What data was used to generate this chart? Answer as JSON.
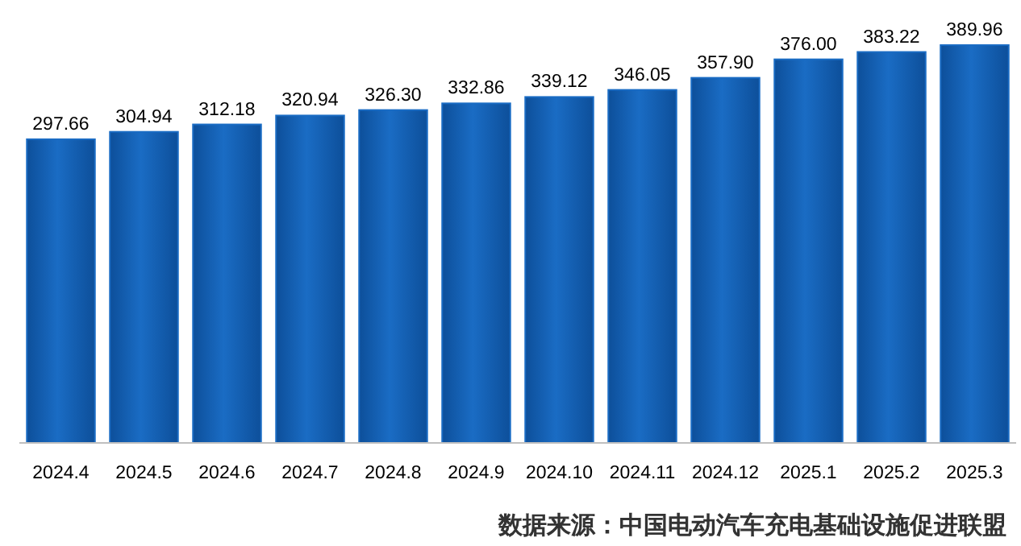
{
  "chart_data": {
    "type": "bar",
    "categories": [
      "2024.4",
      "2024.5",
      "2024.6",
      "2024.7",
      "2024.8",
      "2024.9",
      "2024.10",
      "2024.11",
      "2024.12",
      "2025.1",
      "2025.2",
      "2025.3"
    ],
    "values": [
      297.66,
      304.94,
      312.18,
      320.94,
      326.3,
      332.86,
      339.12,
      346.05,
      357.9,
      376.0,
      383.22,
      389.96
    ],
    "value_labels": [
      "297.66",
      "304.94",
      "312.18",
      "320.94",
      "326.30",
      "332.86",
      "339.12",
      "346.05",
      "357.90",
      "376.00",
      "383.22",
      "389.96"
    ],
    "color": "#1a6cc4",
    "annotations": [
      "数据来源：中国电动汽车充电基础设施促进联盟"
    ]
  }
}
